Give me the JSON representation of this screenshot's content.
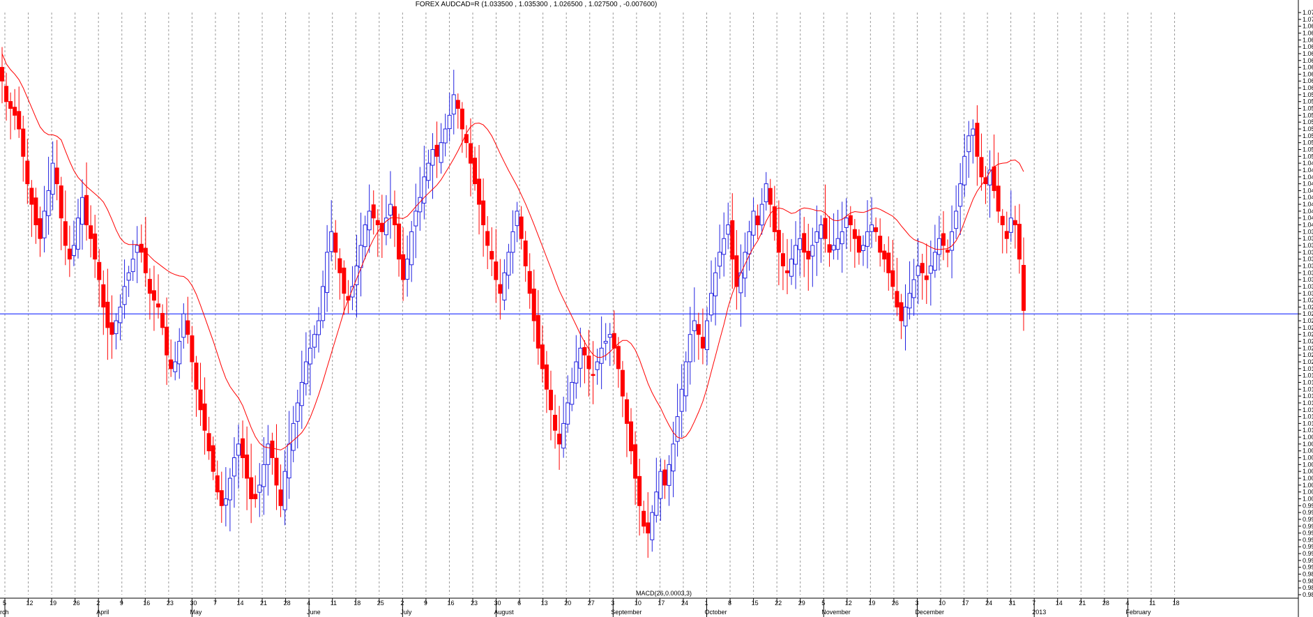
{
  "chart_data": {
    "type": "candlestick",
    "title": "FOREX AUDCAD=R (1.033500 , 1.035300 , 1.026500 , 1.027500 , -0.007600)",
    "overlay_label": "MACD(26,0.0003,3)",
    "ylim": [
      0.986,
      1.071
    ],
    "y_ticks": [
      0.986,
      0.987,
      0.988,
      0.989,
      0.99,
      0.991,
      0.992,
      0.993,
      0.994,
      0.995,
      0.996,
      0.997,
      0.998,
      0.999,
      1.0,
      1.001,
      1.002,
      1.003,
      1.004,
      1.005,
      1.006,
      1.007,
      1.008,
      1.009,
      1.01,
      1.011,
      1.012,
      1.013,
      1.014,
      1.015,
      1.016,
      1.017,
      1.018,
      1.019,
      1.02,
      1.021,
      1.022,
      1.023,
      1.024,
      1.025,
      1.026,
      1.027,
      1.028,
      1.029,
      1.03,
      1.031,
      1.032,
      1.033,
      1.034,
      1.035,
      1.036,
      1.037,
      1.038,
      1.039,
      1.04,
      1.041,
      1.042,
      1.043,
      1.044,
      1.045,
      1.046,
      1.047,
      1.048,
      1.049,
      1.05,
      1.051,
      1.052,
      1.053,
      1.054,
      1.055,
      1.056,
      1.057,
      1.058,
      1.059,
      1.06,
      1.061,
      1.062,
      1.063,
      1.064,
      1.065,
      1.066,
      1.067,
      1.068,
      1.069,
      1.07,
      1.071
    ],
    "y_tick_labels": [
      "0.986",
      "0.987",
      "0.988",
      "0.989",
      "0.990",
      "0.991",
      "0.992",
      "0.993",
      "0.994",
      "0.995",
      "0.996",
      "0.997",
      "0.998",
      "0.999",
      "1.000",
      "1.001",
      "1.002",
      "1.003",
      "1.004",
      "1.005",
      "1.006",
      "1.007",
      "1.008",
      "1.009",
      "1.010",
      "1.011",
      "1.012",
      "1.013",
      "1.014",
      "1.015",
      "1.016",
      "1.017",
      "1.018",
      "1.019",
      "1.020",
      "1.021",
      "1.022",
      "1.023",
      "1.024",
      "1.025",
      "1.026",
      "1.027",
      "1.028",
      "1.029",
      "1.030",
      "1.031",
      "1.032",
      "1.033",
      "1.034",
      "1.035",
      "1.036",
      "1.037",
      "1.038",
      "1.039",
      "1.040",
      "1.041",
      "1.042",
      "1.043",
      "1.044",
      "1.045",
      "1.046",
      "1.047",
      "1.048",
      "1.049",
      "1.050",
      "1.051",
      "1.052",
      "1.053",
      "1.054",
      "1.055",
      "1.056",
      "1.057",
      "1.058",
      "1.059",
      "1.060",
      "1.061",
      "1.062",
      "1.063",
      "1.064",
      "1.065",
      "1.066",
      "1.067",
      "1.068",
      "1.069",
      "1.070",
      "1.071"
    ],
    "x_day_ticks": [
      "5",
      "12",
      "19",
      "26",
      "2",
      "9",
      "16",
      "23",
      "30",
      "7",
      "14",
      "21",
      "28",
      "4",
      "11",
      "18",
      "25",
      "2",
      "9",
      "16",
      "23",
      "30",
      "6",
      "13",
      "20",
      "27",
      "3",
      "10",
      "17",
      "24",
      "1",
      "8",
      "15",
      "22",
      "29",
      "5",
      "12",
      "19",
      "26",
      "3",
      "10",
      "17",
      "24",
      "31",
      "7",
      "14",
      "21",
      "28",
      "4",
      "11",
      "18"
    ],
    "x_month_labels": [
      {
        "label": "rch",
        "week": 0
      },
      {
        "label": "April",
        "week": 4
      },
      {
        "label": "May",
        "week": 8
      },
      {
        "label": "June",
        "week": 13
      },
      {
        "label": "July",
        "week": 17
      },
      {
        "label": "August",
        "week": 21
      },
      {
        "label": "September",
        "week": 26
      },
      {
        "label": "October",
        "week": 30
      },
      {
        "label": "November",
        "week": 35
      },
      {
        "label": "December",
        "week": 39
      },
      {
        "label": "2013",
        "week": 44
      },
      {
        "label": "February",
        "week": 48
      }
    ],
    "reference_line": 1.027,
    "colors": {
      "up": "#2020e0",
      "down": "#ff0000",
      "ma": "#ff0000",
      "ref": "#3040ff",
      "grid": "#9a9a9a"
    },
    "grid": true,
    "closes": [
      1.061,
      1.058,
      1.057,
      1.056,
      1.054,
      1.05,
      1.046,
      1.043,
      1.04,
      1.038,
      1.042,
      1.045,
      1.049,
      1.046,
      1.041,
      1.037,
      1.035,
      1.037,
      1.041,
      1.044,
      1.04,
      1.038,
      1.035,
      1.032,
      1.028,
      1.025,
      1.024,
      1.026,
      1.028,
      1.031,
      1.033,
      1.035,
      1.037,
      1.036,
      1.033,
      1.03,
      1.029,
      1.028,
      1.025,
      1.021,
      1.019,
      1.02,
      1.023,
      1.027,
      1.024,
      1.02,
      1.016,
      1.013,
      1.01,
      1.007,
      1.004,
      1.001,
      0.999,
      1.0,
      1.003,
      1.006,
      1.008,
      1.006,
      1.003,
      1.0,
      1.0,
      1.002,
      1.005,
      1.008,
      1.006,
      1.002,
      0.999,
      1.004,
      1.008,
      1.011,
      1.014,
      1.017,
      1.02,
      1.022,
      1.024,
      1.026,
      1.031,
      1.036,
      1.039,
      1.036,
      1.033,
      1.03,
      1.029,
      1.031,
      1.034,
      1.037,
      1.04,
      1.042,
      1.041,
      1.04,
      1.039,
      1.041,
      1.043,
      1.04,
      1.035,
      1.032,
      1.035,
      1.039,
      1.042,
      1.044,
      1.047,
      1.049,
      1.051,
      1.05,
      1.052,
      1.054,
      1.056,
      1.059,
      1.057,
      1.054,
      1.052,
      1.049,
      1.046,
      1.043,
      1.04,
      1.037,
      1.035,
      1.032,
      1.03,
      1.033,
      1.036,
      1.039,
      1.042,
      1.038,
      1.034,
      1.03,
      1.026,
      1.022,
      1.019,
      1.016,
      1.013,
      1.01,
      1.008,
      1.011,
      1.014,
      1.017,
      1.02,
      1.022,
      1.021,
      1.019,
      1.018,
      1.02,
      1.022,
      1.023,
      1.024,
      1.022,
      1.019,
      1.015,
      1.011,
      1.007,
      1.003,
      0.999,
      0.996,
      0.995,
      0.998,
      1.001,
      1.004,
      1.002,
      1.005,
      1.008,
      1.012,
      1.016,
      1.02,
      1.024,
      1.026,
      1.024,
      1.022,
      1.026,
      1.03,
      1.033,
      1.036,
      1.038,
      1.04,
      1.035,
      1.031,
      1.033,
      1.036,
      1.039,
      1.042,
      1.04,
      1.043,
      1.046,
      1.043,
      1.039,
      1.036,
      1.034,
      1.033,
      1.035,
      1.037,
      1.038,
      1.036,
      1.035,
      1.037,
      1.039,
      1.04,
      1.038,
      1.036,
      1.037,
      1.038,
      1.039,
      1.041,
      1.04,
      1.038,
      1.036,
      1.037,
      1.039,
      1.04,
      1.039,
      1.036,
      1.035,
      1.033,
      1.031,
      1.028,
      1.026,
      1.028,
      1.03,
      1.032,
      1.034,
      1.033,
      1.032,
      1.034,
      1.036,
      1.038,
      1.037,
      1.036,
      1.039,
      1.042,
      1.046,
      1.05,
      1.053,
      1.054,
      1.05,
      1.047,
      1.046,
      1.048,
      1.045,
      1.042,
      1.04,
      1.038,
      1.041,
      1.04,
      1.035,
      1.0275
    ],
    "ma_period": 15
  }
}
